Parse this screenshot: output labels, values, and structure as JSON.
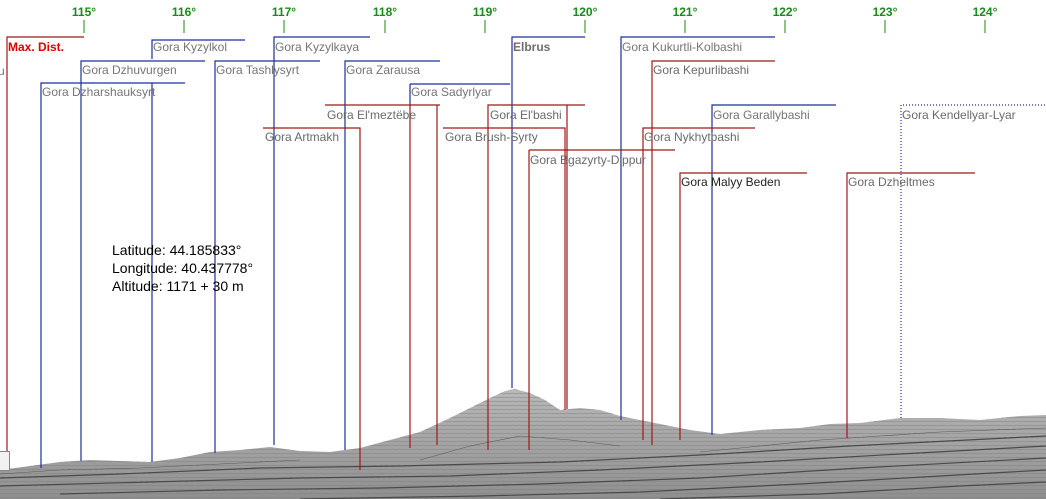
{
  "degree_labels": [
    "115°",
    "116°",
    "117°",
    "118°",
    "119°",
    "120°",
    "121°",
    "122°",
    "123°",
    "124°"
  ],
  "max_distance_label": "Max. Dist.",
  "edge_fragment": "u",
  "peaks": [
    {
      "name": "Gora Kyzylkol",
      "color": "blue"
    },
    {
      "name": "Gora Kyzylkaya",
      "color": "blue"
    },
    {
      "name": "Gora Dzhuvurgen",
      "color": "blue"
    },
    {
      "name": "Gora Tashlysyrt",
      "color": "blue"
    },
    {
      "name": "Gora Zarausa",
      "color": "blue"
    },
    {
      "name": "Gora Dzharshauksyrt",
      "color": "blue"
    },
    {
      "name": "Gora Sadyrlyar",
      "color": "blue"
    },
    {
      "name": "Gora El'meztëbe",
      "color": "red"
    },
    {
      "name": "Gora El'bashi",
      "color": "red"
    },
    {
      "name": "Gora Artmakh",
      "color": "red"
    },
    {
      "name": "Gora Brush-Syrty",
      "color": "red"
    },
    {
      "name": "Gora Bgazyrty-Dippur",
      "color": "red"
    },
    {
      "name": "Elbrus",
      "color": "blue"
    },
    {
      "name": "Gora Kukurtli-Kolbashi",
      "color": "blue"
    },
    {
      "name": "Gora Kepurlibashi",
      "color": "red"
    },
    {
      "name": "Gora Garallybashi",
      "color": "blue"
    },
    {
      "name": "Gora Nykhytbashi",
      "color": "red"
    },
    {
      "name": "Gora Malyy Beden",
      "color": "red"
    },
    {
      "name": "Gora Dzheltmes",
      "color": "red"
    },
    {
      "name": "Gora Kendellyar-Lyar",
      "color": "blue-dotted"
    }
  ],
  "info": {
    "latitude": "Latitude: 44.185833°",
    "longitude": "Longitude: 40.437778°",
    "altitude": "Altitude: 1171 + 30 m"
  },
  "colors": {
    "degree": "#1a8a1a",
    "blue_line": "#1f2f9a",
    "red_line": "#a01818",
    "max_dist": "#e00000",
    "terrain": "#a9a9a9"
  }
}
